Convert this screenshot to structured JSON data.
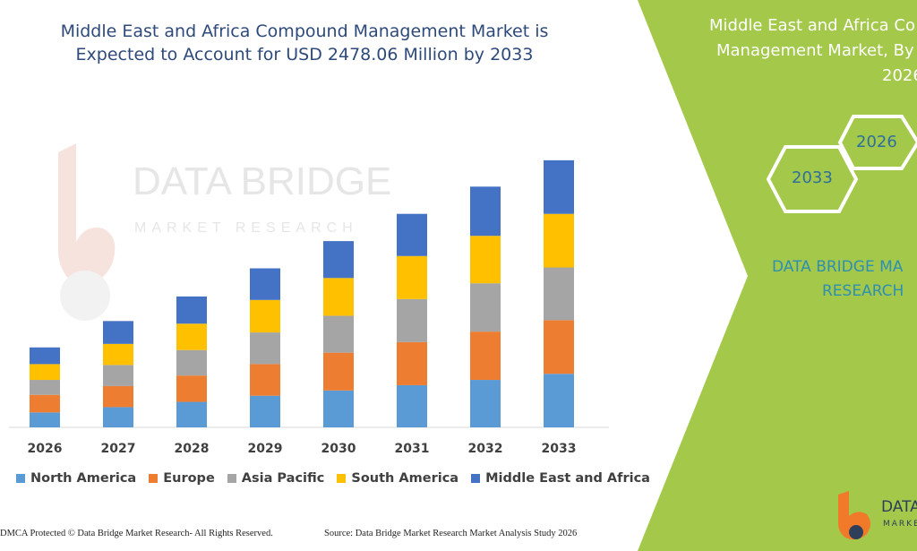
{
  "title_line1": "Middle East and Africa Compound Management Market is",
  "title_line2": "Expected to Account for USD 2478.06 Million by 2033",
  "watermark": {
    "line1": "DATA BRIDGE",
    "line2": "MARKET RESEARCH"
  },
  "colors": {
    "north_america": "#5b9bd5",
    "europe": "#ed7d31",
    "asia_pacific": "#a5a5a5",
    "south_america": "#ffc000",
    "middle_east_africa": "#4472c4",
    "panel_green": "#a3c84a"
  },
  "chart_data": {
    "type": "bar",
    "stacked": true,
    "categories": [
      "2026",
      "2027",
      "2028",
      "2029",
      "2030",
      "2031",
      "2032",
      "2033"
    ],
    "series": [
      {
        "name": "North America",
        "values": [
          17,
          23,
          29,
          36,
          42,
          48,
          54,
          61
        ]
      },
      {
        "name": "Europe",
        "values": [
          20,
          24,
          30,
          36,
          43,
          49,
          55,
          61
        ]
      },
      {
        "name": "Asia Pacific",
        "values": [
          17,
          24,
          29,
          36,
          42,
          49,
          55,
          60
        ]
      },
      {
        "name": "South America",
        "values": [
          18,
          24,
          30,
          37,
          43,
          49,
          54,
          61
        ]
      },
      {
        "name": "Middle East and Africa",
        "values": [
          19,
          26,
          31,
          36,
          42,
          48,
          56,
          61
        ]
      }
    ],
    "ylim": [
      0,
      320
    ],
    "grid": false,
    "legend_position": "bottom"
  },
  "footer": {
    "left": "DMCA Protected © Data Bridge Market Research- All Rights Reserved.",
    "right": "Source: Data Bridge Market Research Market Analysis Study 2026"
  },
  "panel": {
    "title_line1": "Middle East and Africa Co",
    "title_line2": "Management Market, By",
    "title_line3": "2026",
    "hex_2026": "2026",
    "hex_2033": "2033",
    "brand_line1": "DATA BRIDGE MA",
    "brand_line2": "RESEARCH",
    "logo_text": "DATA",
    "logo_sub": "MARKE"
  }
}
